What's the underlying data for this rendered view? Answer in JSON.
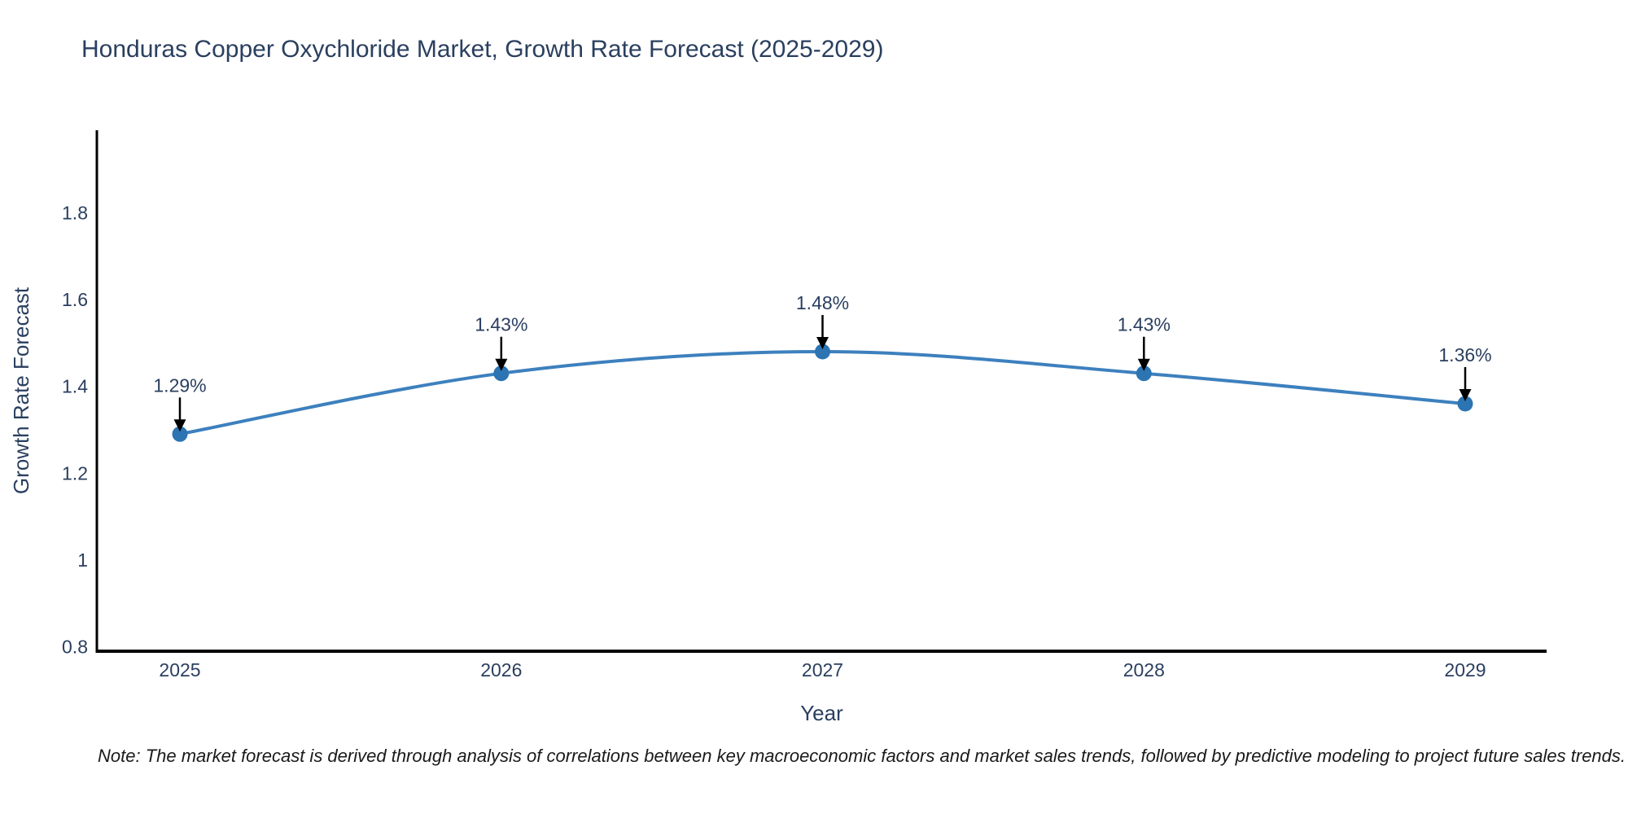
{
  "chart_data": {
    "type": "line",
    "title": "Honduras Copper Oxychloride Market, Growth Rate Forecast (2025-2029)",
    "x": [
      "2025",
      "2026",
      "2027",
      "2028",
      "2029"
    ],
    "series": [
      {
        "name": "Growth Rate Forecast",
        "values": [
          1.29,
          1.43,
          1.48,
          1.43,
          1.36
        ]
      }
    ],
    "point_labels": [
      "1.29%",
      "1.43%",
      "1.48%",
      "1.43%",
      "1.36%"
    ],
    "xlabel": "Year",
    "ylabel": "Growth Rate Forecast",
    "ylim": [
      0.79,
      1.99
    ],
    "yticks": [
      0.8,
      1,
      1.2,
      1.4,
      1.6,
      1.8
    ],
    "ytick_labels": [
      "0.8",
      "1",
      "1.2",
      "1.4",
      "1.6",
      "1.8"
    ],
    "line_shape": "spline",
    "grid": false,
    "legend": "none",
    "colors": {
      "line": "#3d80be",
      "marker": "#2c74b2",
      "axis": "#000000",
      "text": "#2a3f5f",
      "annotation_arrow": "#000000"
    },
    "note": "Note: The market forecast is derived through analysis of correlations between key macroeconomic factors and market sales trends, followed by predictive modeling to project future sales trends."
  }
}
